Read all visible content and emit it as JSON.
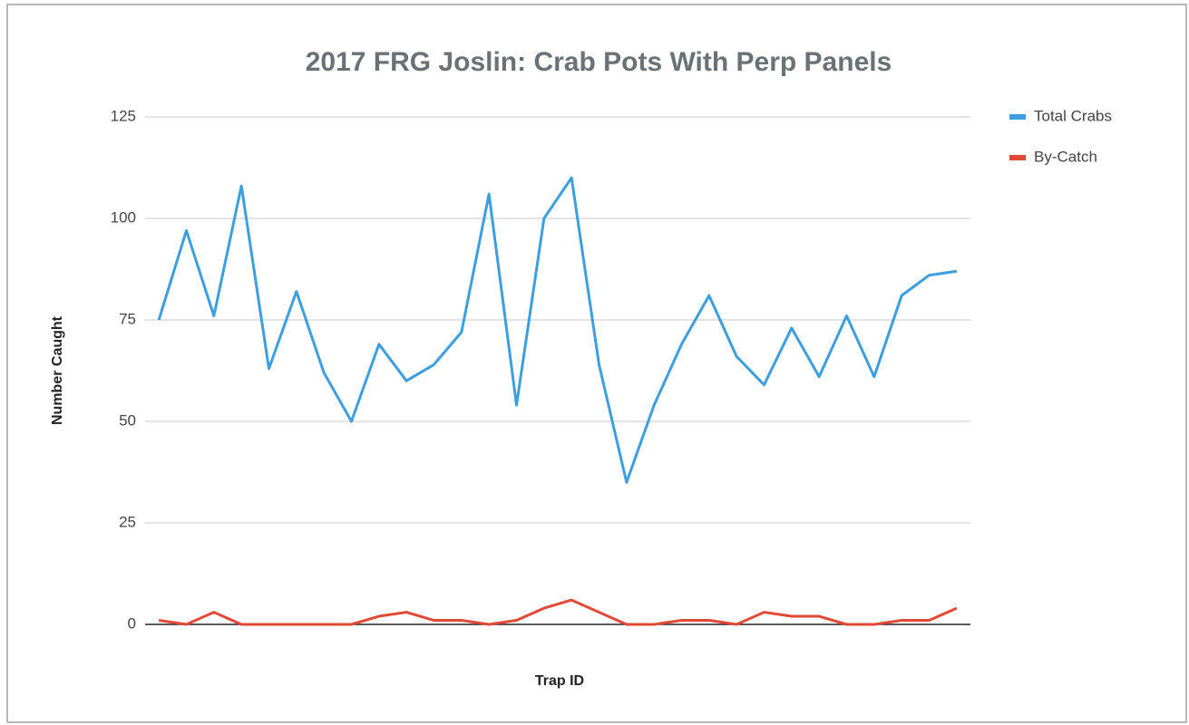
{
  "chart_data": {
    "type": "line",
    "title": "2017 FRG Joslin: Crab Pots With Perp Panels",
    "xlabel": "Trap ID",
    "ylabel": "Number Caught",
    "categories": [
      null,
      null,
      null,
      null,
      null,
      null,
      null,
      null,
      null,
      null,
      null,
      null,
      null,
      null,
      null,
      null,
      null,
      null,
      null,
      null,
      null,
      null,
      null,
      null,
      null,
      null,
      null,
      null,
      null,
      null
    ],
    "series": [
      {
        "name": "Total Crabs",
        "color": "#3d9ee0",
        "values": [
          75,
          97,
          76,
          108,
          63,
          82,
          62,
          50,
          69,
          60,
          64,
          72,
          106,
          54,
          100,
          110,
          64,
          35,
          54,
          69,
          81,
          66,
          59,
          73,
          61,
          76,
          61,
          81,
          86,
          87
        ]
      },
      {
        "name": "By-Catch",
        "color": "#e04a35",
        "values": [
          1,
          0,
          3,
          0,
          0,
          0,
          0,
          0,
          2,
          3,
          1,
          1,
          0,
          1,
          4,
          6,
          3,
          0,
          0,
          1,
          1,
          0,
          3,
          2,
          2,
          0,
          0,
          1,
          1,
          4
        ]
      }
    ],
    "ylim": [
      0,
      125
    ],
    "yticks": [
      0,
      25,
      50,
      75,
      100,
      125
    ],
    "grid": true,
    "legend": "right"
  }
}
